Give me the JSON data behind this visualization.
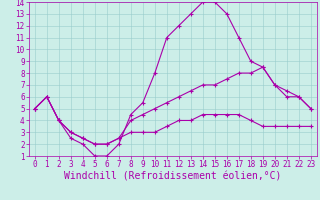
{
  "title": "",
  "xlabel": "Windchill (Refroidissement éolien,°C)",
  "xlim": [
    -0.5,
    23.5
  ],
  "ylim": [
    1,
    14
  ],
  "xticks": [
    0,
    1,
    2,
    3,
    4,
    5,
    6,
    7,
    8,
    9,
    10,
    11,
    12,
    13,
    14,
    15,
    16,
    17,
    18,
    19,
    20,
    21,
    22,
    23
  ],
  "yticks": [
    1,
    2,
    3,
    4,
    5,
    6,
    7,
    8,
    9,
    10,
    11,
    12,
    13,
    14
  ],
  "bg_color": "#cceee8",
  "line_color": "#aa00aa",
  "line1_x": [
    0,
    1,
    2,
    3,
    4,
    5,
    6,
    7,
    8,
    9,
    10,
    11,
    12,
    13,
    14,
    15,
    16,
    17,
    18,
    19,
    20,
    21,
    22,
    23
  ],
  "line1_y": [
    5,
    6,
    4,
    2.5,
    2,
    1,
    1,
    2,
    4.5,
    5.5,
    8,
    11,
    12,
    13,
    14,
    14,
    13,
    11,
    9,
    8.5,
    7,
    6,
    6,
    5
  ],
  "line2_x": [
    0,
    1,
    2,
    3,
    4,
    5,
    6,
    7,
    8,
    9,
    10,
    11,
    12,
    13,
    14,
    15,
    16,
    17,
    18,
    19,
    20,
    21,
    22,
    23
  ],
  "line2_y": [
    5,
    6,
    4,
    3,
    2.5,
    2,
    2,
    2.5,
    4,
    4.5,
    5,
    5.5,
    6,
    6.5,
    7,
    7,
    7.5,
    8,
    8,
    8.5,
    7,
    6.5,
    6,
    5
  ],
  "line3_x": [
    0,
    1,
    2,
    3,
    4,
    5,
    6,
    7,
    8,
    9,
    10,
    11,
    12,
    13,
    14,
    15,
    16,
    17,
    18,
    19,
    20,
    21,
    22,
    23
  ],
  "line3_y": [
    5,
    6,
    4,
    3,
    2.5,
    2,
    2,
    2.5,
    3,
    3,
    3,
    3.5,
    4,
    4,
    4.5,
    4.5,
    4.5,
    4.5,
    4,
    3.5,
    3.5,
    3.5,
    3.5,
    3.5
  ],
  "grid_color": "#99cccc",
  "tick_fontsize": 5.5,
  "label_fontsize": 7,
  "marker_size": 2.5,
  "linewidth": 0.8
}
